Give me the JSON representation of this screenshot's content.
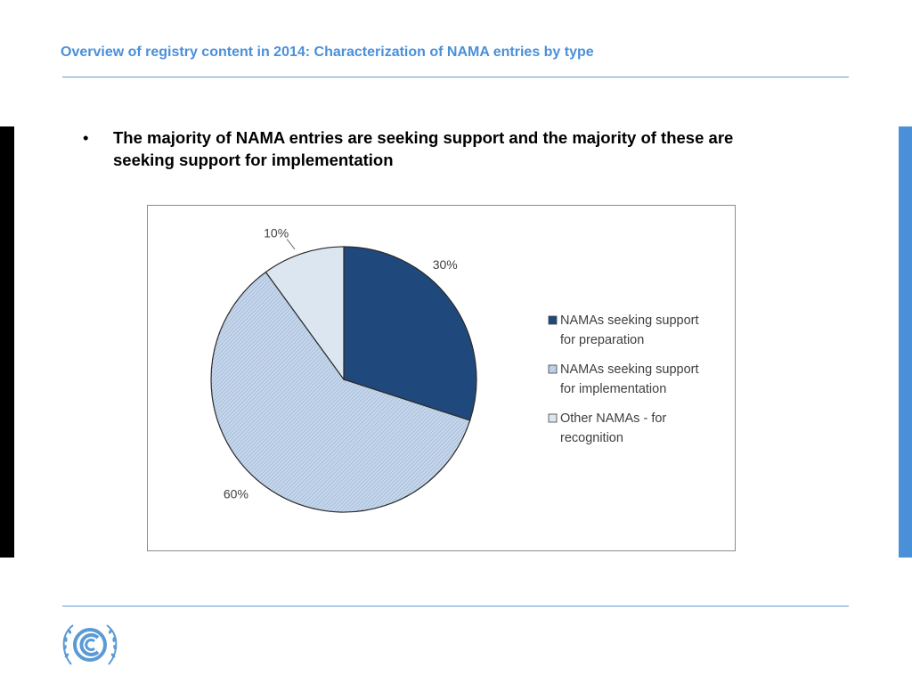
{
  "slide": {
    "title": "Overview of registry content in 2014: Characterization of NAMA entries by type",
    "bullet_symbol": "•",
    "bullet_text": "The majority of NAMA entries are seeking support and the majority of these are seeking support for implementation"
  },
  "colors": {
    "title": "#4a90d9",
    "slice_preparation": "#1f497d",
    "slice_implementation": "#b9cde5",
    "slice_other": "#dce6f1"
  },
  "chart_data": {
    "type": "pie",
    "title": "",
    "slices": [
      {
        "name": "NAMAs seeking support for preparation",
        "value": 30,
        "label": "30%",
        "legend_lines": [
          "NAMAs seeking support",
          "for preparation"
        ]
      },
      {
        "name": "NAMAs seeking support for implementation",
        "value": 60,
        "label": "60%",
        "legend_lines": [
          "NAMAs seeking support",
          "for implementation"
        ]
      },
      {
        "name": "Other NAMAs - for recognition",
        "value": 10,
        "label": "10%",
        "legend_lines": [
          "Other NAMAs - for",
          "recognition"
        ]
      }
    ],
    "start_angle": "12 o'clock",
    "direction": "clockwise",
    "legend_position": "right"
  },
  "logo": {
    "name": "unfccc-logo"
  }
}
